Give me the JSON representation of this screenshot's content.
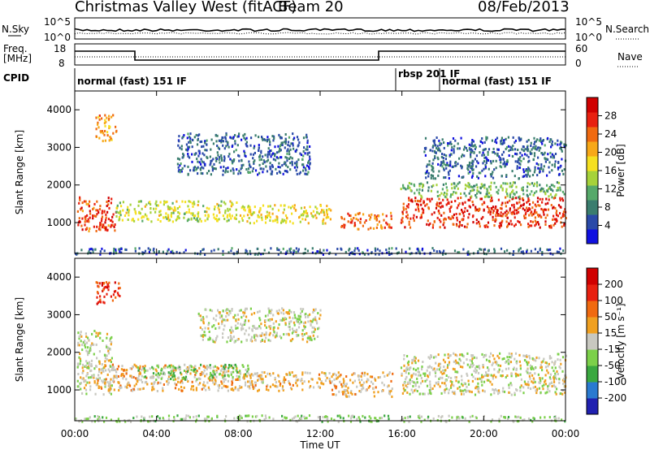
{
  "header": {
    "title": "Christmas Valley West (fitACF)",
    "beam": "Beam 20",
    "date": "08/Feb/2013"
  },
  "top_panels": {
    "nsky_label": "N.Sky",
    "nsearch_label": "N.Search",
    "nsky_ticks": [
      "10^5",
      "10^0"
    ],
    "nsky_ticks_right": [
      "10^5",
      "10^0"
    ],
    "freq_label_line1": "Freq.",
    "freq_label_line2": "[MHz]",
    "nave_label": "Nave",
    "freq_ticks": [
      "18",
      "8"
    ],
    "nave_ticks": [
      "60",
      "0"
    ],
    "cpid_label": "CPID",
    "cpid_segments": [
      {
        "label": "normal (fast) 151 IF",
        "start": 0.0,
        "end": 15.9
      },
      {
        "label": "rbsp 201 IF",
        "start": 15.9,
        "end": 17.9
      },
      {
        "label": "normal (fast) 151 IF",
        "start": 17.9,
        "end": 24.0
      }
    ]
  },
  "power_colorbar": {
    "label": "Power [dB]",
    "ticks": [
      "28",
      "24",
      "20",
      "16",
      "12",
      "8",
      "4"
    ],
    "colors": [
      "#1010e0",
      "#2a4aa8",
      "#3a7d6e",
      "#56a96a",
      "#a6d23a",
      "#f5e020",
      "#f7a818",
      "#f06a10",
      "#e82010",
      "#d00000"
    ]
  },
  "velocity_colorbar": {
    "label": "Velocity [m s⁻¹]",
    "ticks": [
      "200",
      "100",
      "50",
      "15",
      "-15",
      "-50",
      "-100",
      "-200"
    ],
    "colors": [
      "#2020b0",
      "#2a7ad0",
      "#3aa840",
      "#7cd04a",
      "#c8c8c0",
      "#f0a020",
      "#f06a10",
      "#e82010",
      "#d00000"
    ]
  },
  "chart_data": [
    {
      "type": "heatmap",
      "name": "power",
      "ylabel": "Slant Range [km]",
      "xlim": [
        0,
        24
      ],
      "ylim": [
        180,
        4500
      ],
      "yticks": [
        1000,
        2000,
        3000,
        4000
      ],
      "xticks": [
        "00:00",
        "04:00",
        "08:00",
        "12:00",
        "16:00",
        "20:00",
        "00:00"
      ],
      "colorbar_range": [
        0,
        32
      ],
      "regions": [
        {
          "t0": 0.1,
          "t1": 2.0,
          "r0": 800,
          "r1": 1700,
          "value": 26
        },
        {
          "t0": 1.0,
          "t1": 2.0,
          "r0": 3200,
          "r1": 3900,
          "value": 22
        },
        {
          "t0": 2.0,
          "t1": 8.0,
          "r0": 1050,
          "r1": 1600,
          "value": 16
        },
        {
          "t0": 5.0,
          "t1": 11.5,
          "r0": 2300,
          "r1": 3400,
          "value": 6
        },
        {
          "t0": 8.0,
          "t1": 12.5,
          "r0": 1000,
          "r1": 1500,
          "value": 18
        },
        {
          "t0": 13.0,
          "t1": 15.5,
          "r0": 850,
          "r1": 1300,
          "value": 24
        },
        {
          "t0": 15.9,
          "t1": 24.0,
          "r0": 900,
          "r1": 1700,
          "value": 27
        },
        {
          "t0": 15.9,
          "t1": 24.0,
          "r0": 1700,
          "r1": 2100,
          "value": 12
        },
        {
          "t0": 17.0,
          "t1": 24.0,
          "r0": 2200,
          "r1": 3300,
          "value": 6
        },
        {
          "t0": 0.0,
          "t1": 24.0,
          "r0": 180,
          "r1": 350,
          "value": 6
        }
      ]
    },
    {
      "type": "heatmap",
      "name": "velocity",
      "xlabel": "Time UT",
      "ylabel": "Slant Range [km]",
      "xlim": [
        0,
        24
      ],
      "ylim": [
        180,
        4500
      ],
      "yticks": [
        1000,
        2000,
        3000,
        4000
      ],
      "xticks": [
        "00:00",
        "04:00",
        "08:00",
        "12:00",
        "16:00",
        "20:00",
        "00:00"
      ],
      "regions": [
        {
          "t0": 0.1,
          "t1": 1.8,
          "r0": 900,
          "r1": 2600,
          "value": 0
        },
        {
          "t0": 1.0,
          "t1": 2.2,
          "r0": 3300,
          "r1": 3900,
          "value": 150
        },
        {
          "t0": 1.0,
          "t1": 8.0,
          "r0": 1000,
          "r1": 1700,
          "value": 40
        },
        {
          "t0": 3.0,
          "t1": 8.5,
          "r0": 1300,
          "r1": 1700,
          "value": -60
        },
        {
          "t0": 6.0,
          "t1": 12.0,
          "r0": 2300,
          "r1": 3200,
          "value": 0
        },
        {
          "t0": 8.0,
          "t1": 12.5,
          "r0": 1000,
          "r1": 1500,
          "value": 30
        },
        {
          "t0": 12.5,
          "t1": 15.5,
          "r0": 850,
          "r1": 1500,
          "value": 40
        },
        {
          "t0": 15.9,
          "t1": 24.0,
          "r0": 900,
          "r1": 2000,
          "value": 0
        },
        {
          "t0": 0.0,
          "t1": 24.0,
          "r0": 180,
          "r1": 350,
          "value": -40
        }
      ]
    }
  ]
}
